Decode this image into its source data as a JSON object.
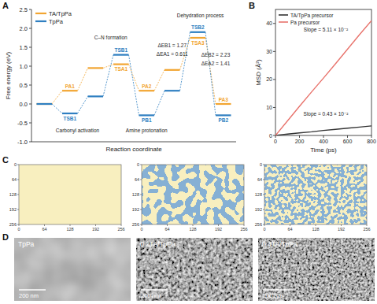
{
  "panel_labels": [
    "A",
    "B",
    "C",
    "D"
  ],
  "chart_data": [
    {
      "type": "step",
      "x": [
        0,
        1,
        2,
        3,
        4,
        5,
        6,
        7
      ],
      "xlim": [
        -0.5,
        7.5
      ],
      "ylim": [
        -1,
        2.5
      ],
      "yticks": [
        {
          "value": -1,
          "label": "-1.0"
        },
        -0.5,
        {
          "value": 0,
          "label": "0.0"
        },
        0.5,
        {
          "value": 1,
          "label": "1.0"
        },
        1.5,
        {
          "value": 2,
          "label": "2.0"
        },
        2.5
      ],
      "tick_labels": "y",
      "y_label": "Free energy (eV)",
      "x_label": "Reaction coordinate",
      "legend": "upper left",
      "series": [
        {
          "name": "TA/TpPa",
          "color": "#f2a531",
          "values": [
            0,
            0.35,
            0.95,
            1.05,
            0.35,
            0.9,
            1.75,
            0.0
          ],
          "point_labels": [
            null,
            "PA1",
            null,
            "TSA1",
            "PA2",
            null,
            "TSA3",
            "PA3"
          ]
        },
        {
          "name": "TpPa",
          "color": "#2f7fc1",
          "values": [
            0,
            -0.25,
            0.2,
            1.3,
            -0.3,
            0.35,
            1.9,
            -0.3
          ],
          "point_labels": [
            null,
            "TSB1",
            null,
            "TSB1",
            "PB1",
            null,
            "TSB2",
            "PB2"
          ]
        }
      ],
      "annotations": [
        {
          "text": "Carbonyl activation",
          "x": 1.3,
          "y": -0.75
        },
        {
          "text": "C–N formation",
          "x": 2.6,
          "y": 1.7
        },
        {
          "text": "Amine protonation",
          "x": 4.0,
          "y": -0.75
        },
        {
          "text": "Dehydration process",
          "x": 6.1,
          "y": 2.3
        },
        {
          "text": "ΔEB1 = 1.27",
          "x": 5.0,
          "y": 1.5
        },
        {
          "text": "ΔEA1 = 0.611",
          "x": 5.0,
          "y": 1.27
        },
        {
          "text": "ΔEB2 = 2.23",
          "x": 6.7,
          "y": 1.25
        },
        {
          "text": "ΔEA2 = 1.41",
          "x": 6.7,
          "y": 1.02
        }
      ]
    },
    {
      "type": "line",
      "x": [
        0,
        100,
        200,
        300,
        400,
        500,
        600,
        700,
        800
      ],
      "xlim": [
        0,
        800
      ],
      "xticks": [
        0,
        200,
        400,
        600,
        800
      ],
      "ylim": [
        0,
        45
      ],
      "yticks": [
        0,
        10,
        20,
        30,
        40
      ],
      "x_label": "Time (ps)",
      "y_label": "MSD (Å²)",
      "legend": "upper left",
      "series": [
        {
          "name": "TA/TpPa precursor",
          "color": "#333333",
          "values": [
            0,
            0.5,
            0.9,
            1.3,
            1.8,
            2.2,
            2.6,
            3.0,
            3.4
          ]
        },
        {
          "name": "Pa precursor",
          "color": "#e8736c",
          "values": [
            0,
            5.2,
            10.4,
            15.5,
            20.5,
            25.6,
            30.8,
            36.0,
            41.0
          ]
        }
      ],
      "annotations": [
        {
          "text": "Slope = 5.11 × 10⁻²",
          "x": 420,
          "y": 37
        },
        {
          "text": "Slope = 0.43 × 10⁻²",
          "x": 420,
          "y": 7
        }
      ]
    }
  ],
  "phase_field": {
    "xlim": [
      0,
      256
    ],
    "ylim": [
      0,
      256
    ],
    "xticks": [
      0,
      64,
      128,
      192,
      256
    ],
    "yticks": [
      0,
      64,
      128,
      192,
      256
    ]
  },
  "sem": {
    "images": [
      {
        "label": "TpPa",
        "scale_bar": "200 nm"
      },
      {
        "label": "0.2TA/TpPa",
        "scale_bar": "200 nm"
      },
      {
        "label": "0.4TA/TpPa",
        "scale_bar": "200 nm"
      }
    ]
  }
}
